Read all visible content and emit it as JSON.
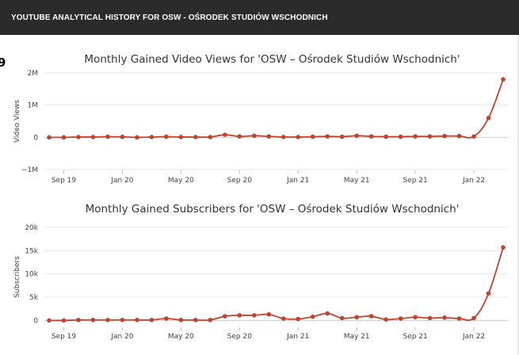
{
  "header": {
    "title": "YOUTUBE ANALYTICAL HISTORY FOR OSW - OŚRODEK STUDIÓW WSCHODNICH"
  },
  "side_glyph": "9",
  "colors": {
    "line": "#c0432b",
    "grid": "#e6e6e6",
    "zero_line": "#cccccc",
    "header_bg": "#2b2b2b",
    "text": "#333333"
  },
  "chart_data": [
    {
      "type": "line",
      "title": "Monthly Gained Video Views for 'OSW – Ośrodek Studiów Wschodnich'",
      "xlabel": "",
      "ylabel": "Video Views",
      "x_ticks": [
        "Sep 19",
        "Jan 20",
        "May 20",
        "Sep 20",
        "Jan 21",
        "May 21",
        "Sep 21",
        "Jan 22"
      ],
      "y_ticks": [
        "−1M",
        "0",
        "1M",
        "2M"
      ],
      "y_tick_values": [
        -1000000,
        0,
        1000000,
        2000000
      ],
      "ylim": [
        -1000000,
        2000000
      ],
      "grid": true,
      "legend": "none",
      "x": [
        "2019-08",
        "2019-09",
        "2019-10",
        "2019-11",
        "2019-12",
        "2020-01",
        "2020-02",
        "2020-03",
        "2020-04",
        "2020-05",
        "2020-06",
        "2020-07",
        "2020-08",
        "2020-09",
        "2020-10",
        "2020-11",
        "2020-12",
        "2021-01",
        "2021-02",
        "2021-03",
        "2021-04",
        "2021-05",
        "2021-06",
        "2021-07",
        "2021-08",
        "2021-09",
        "2021-10",
        "2021-11",
        "2021-12",
        "2022-01",
        "2022-02",
        "2022-03"
      ],
      "values": [
        0,
        0,
        10000,
        10000,
        20000,
        15000,
        0,
        10000,
        20000,
        10000,
        10000,
        10000,
        80000,
        30000,
        50000,
        30000,
        10000,
        10000,
        20000,
        30000,
        20000,
        50000,
        30000,
        20000,
        20000,
        30000,
        30000,
        40000,
        40000,
        30000,
        600000,
        1800000
      ]
    },
    {
      "type": "line",
      "title": "Monthly Gained Subscribers for 'OSW – Ośrodek Studiów Wschodnich'",
      "xlabel": "",
      "ylabel": "Subscribers",
      "x_ticks": [
        "Sep 19",
        "Jan 20",
        "May 20",
        "Sep 20",
        "Jan 21",
        "May 21",
        "Sep 21",
        "Jan 22"
      ],
      "y_ticks": [
        "0",
        "5k",
        "10k",
        "15k",
        "20k"
      ],
      "y_tick_values": [
        0,
        5000,
        10000,
        15000,
        20000
      ],
      "ylim": [
        -1300,
        20000
      ],
      "grid": true,
      "legend": "none",
      "x": [
        "2019-08",
        "2019-09",
        "2019-10",
        "2019-11",
        "2019-12",
        "2020-01",
        "2020-02",
        "2020-03",
        "2020-04",
        "2020-05",
        "2020-06",
        "2020-07",
        "2020-08",
        "2020-09",
        "2020-10",
        "2020-11",
        "2020-12",
        "2021-01",
        "2021-02",
        "2021-03",
        "2021-04",
        "2021-05",
        "2021-06",
        "2021-07",
        "2021-08",
        "2021-09",
        "2021-10",
        "2021-11",
        "2021-12",
        "2022-01",
        "2022-02",
        "2022-03"
      ],
      "values": [
        0,
        0,
        100,
        100,
        100,
        100,
        100,
        100,
        400,
        100,
        100,
        100,
        900,
        1100,
        1100,
        1300,
        400,
        300,
        800,
        1500,
        500,
        700,
        900,
        200,
        400,
        700,
        500,
        600,
        400,
        500,
        5800,
        15700
      ]
    }
  ]
}
